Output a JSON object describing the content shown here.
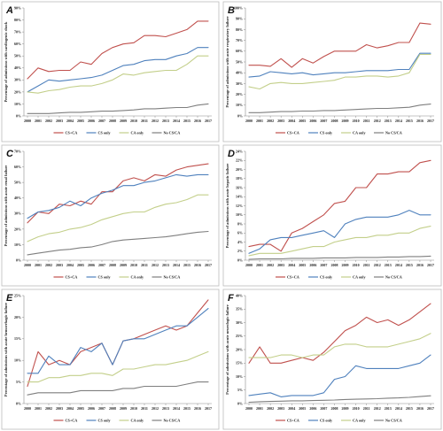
{
  "colors": {
    "CS+CA": "#c0504d",
    "CS only": "#4f81bd",
    "CA only": "#c3cf8a",
    "No CS/CA": "#7f7f7f"
  },
  "chart_data": [
    {
      "panel": "A",
      "type": "line",
      "ylabel": "Percentage of admissions with cardiogenic shock",
      "x": [
        2000,
        2001,
        2002,
        2003,
        2004,
        2005,
        2006,
        2007,
        2008,
        2009,
        2010,
        2011,
        2012,
        2013,
        2014,
        2015,
        2016,
        2017
      ],
      "yticks": [
        "0%",
        "10%",
        "20%",
        "30%",
        "40%",
        "50%",
        "60%",
        "70%",
        "80%",
        "90%"
      ],
      "ylim": [
        0,
        90
      ],
      "series": [
        {
          "name": "CS+CA",
          "values": [
            31,
            40,
            37,
            38,
            38,
            45,
            43,
            52,
            57,
            60,
            61,
            67,
            67,
            66,
            69,
            72,
            79,
            79
          ]
        },
        {
          "name": "CS only",
          "values": [
            20,
            25,
            30,
            29,
            30,
            31,
            32,
            34,
            38,
            42,
            43,
            46,
            47,
            47,
            50,
            52,
            57,
            57
          ]
        },
        {
          "name": "CA only",
          "values": [
            20,
            19,
            21,
            22,
            24,
            25,
            25,
            27,
            30,
            35,
            34,
            36,
            37,
            38,
            38,
            43,
            50,
            50
          ]
        },
        {
          "name": "No CS/CA",
          "values": [
            2,
            2,
            2,
            2.5,
            3,
            3,
            3.5,
            4,
            4,
            4.5,
            5,
            6,
            6,
            6.5,
            7,
            7,
            9,
            10
          ]
        }
      ]
    },
    {
      "panel": "B",
      "type": "line",
      "ylabel": "Percentage of admissions with acute respiratory failure",
      "x": [
        2000,
        2001,
        2002,
        2003,
        2004,
        2005,
        2006,
        2007,
        2008,
        2009,
        2010,
        2011,
        2012,
        2013,
        2014,
        2015,
        2016,
        2017
      ],
      "yticks": [
        "0%",
        "10%",
        "20%",
        "30%",
        "40%",
        "50%",
        "60%",
        "70%",
        "80%",
        "90%",
        "100%"
      ],
      "ylim": [
        0,
        100
      ],
      "series": [
        {
          "name": "CS+CA",
          "values": [
            47,
            47,
            46,
            53,
            45,
            53,
            49,
            55,
            60,
            60,
            60,
            66,
            63,
            65,
            68,
            68,
            86,
            85
          ]
        },
        {
          "name": "CS only",
          "values": [
            36,
            37,
            41,
            40,
            39,
            40,
            38,
            39,
            40,
            40,
            41,
            42,
            42,
            42,
            43,
            43,
            58,
            58
          ]
        },
        {
          "name": "CA only",
          "values": [
            27,
            25,
            30,
            31,
            30,
            30,
            31,
            32,
            33,
            36,
            36,
            37,
            37,
            36,
            37,
            40,
            57,
            57
          ]
        },
        {
          "name": "No CS/CA",
          "values": [
            3,
            3,
            3.5,
            4,
            4,
            4.5,
            4.5,
            5,
            5,
            5.5,
            6,
            6.5,
            7,
            7,
            7.5,
            8,
            10,
            11
          ]
        }
      ]
    },
    {
      "panel": "C",
      "type": "line",
      "ylabel": "Percentage of admissions with acute renal failure",
      "x": [
        2000,
        2001,
        2002,
        2003,
        2004,
        2005,
        2006,
        2007,
        2008,
        2009,
        2010,
        2011,
        2012,
        2013,
        2014,
        2015,
        2016,
        2017
      ],
      "yticks": [
        "0%",
        "10%",
        "20%",
        "30%",
        "40%",
        "50%",
        "60%",
        "70%"
      ],
      "ylim": [
        0,
        70
      ],
      "series": [
        {
          "name": "CS+CA",
          "values": [
            24,
            31,
            30,
            36,
            35,
            38,
            36,
            44,
            44,
            51,
            53,
            51,
            55,
            54,
            58,
            60,
            61,
            62
          ]
        },
        {
          "name": "CS only",
          "values": [
            27,
            31,
            32,
            34,
            38,
            35,
            40,
            43,
            45,
            48,
            48,
            50,
            51,
            53,
            55,
            54,
            55,
            55
          ]
        },
        {
          "name": "CA only",
          "values": [
            12,
            15,
            17,
            18,
            20,
            21,
            23,
            26,
            28,
            30,
            31,
            31,
            34,
            36,
            37,
            39,
            42,
            42
          ]
        },
        {
          "name": "No CS/CA",
          "values": [
            3.5,
            4.5,
            5.5,
            6.5,
            7,
            8,
            8.5,
            10,
            12,
            13,
            13.5,
            14,
            14.5,
            15,
            16,
            17,
            18,
            18.5
          ]
        }
      ]
    },
    {
      "panel": "D",
      "type": "line",
      "ylabel": "Percentage of admissions with acute hepatic failure",
      "x": [
        2000,
        2001,
        2002,
        2003,
        2004,
        2005,
        2006,
        2007,
        2008,
        2009,
        2010,
        2011,
        2012,
        2013,
        2014,
        2015,
        2016,
        2017
      ],
      "yticks": [
        "0%",
        "2%",
        "4%",
        "6%",
        "8%",
        "10%",
        "12%",
        "14%",
        "16%",
        "18%",
        "20%",
        "22%",
        "24%"
      ],
      "ylim": [
        0,
        24
      ],
      "series": [
        {
          "name": "CS+CA",
          "values": [
            3,
            3.5,
            3.5,
            2,
            6,
            7,
            8.5,
            10,
            12.5,
            13,
            16,
            16,
            19,
            19,
            19.5,
            19.5,
            21.5,
            22
          ]
        },
        {
          "name": "CS only",
          "values": [
            1.5,
            2.5,
            4.5,
            5,
            5,
            5.5,
            6,
            6.5,
            5,
            8,
            9,
            9.5,
            9.5,
            9.5,
            10,
            11,
            10,
            10
          ]
        },
        {
          "name": "CA only",
          "values": [
            1,
            1.5,
            1.5,
            1.5,
            2,
            2.5,
            3,
            3,
            4,
            4.5,
            5,
            5,
            5.5,
            5.5,
            6,
            6,
            7,
            7.5
          ]
        },
        {
          "name": "No CS/CA",
          "values": [
            0.2,
            0.3,
            0.3,
            0.3,
            0.4,
            0.4,
            0.4,
            0.5,
            0.5,
            0.5,
            0.6,
            0.6,
            0.6,
            0.7,
            0.7,
            0.8,
            0.8,
            0.9
          ]
        }
      ]
    },
    {
      "panel": "E",
      "type": "line",
      "ylabel": "Percentage of admissions with acute hemorrhagic failure",
      "x": [
        2000,
        2001,
        2002,
        2003,
        2004,
        2005,
        2006,
        2007,
        2008,
        2009,
        2010,
        2011,
        2012,
        2013,
        2014,
        2015,
        2016,
        2017
      ],
      "yticks": [
        "0%",
        "5%",
        "10%",
        "15%",
        "20%",
        "25%"
      ],
      "ylim": [
        0,
        25
      ],
      "series": [
        {
          "name": "CS+CA",
          "values": [
            4,
            12,
            9,
            10,
            9,
            12,
            13,
            14,
            9,
            14.5,
            15,
            16,
            17,
            18,
            17,
            18,
            21,
            24
          ]
        },
        {
          "name": "CS only",
          "values": [
            7,
            7,
            11,
            9,
            9,
            13,
            12,
            14,
            9,
            14.5,
            15,
            15,
            16,
            17,
            18,
            18,
            20,
            22
          ]
        },
        {
          "name": "CA only",
          "values": [
            5,
            5,
            6,
            6,
            6.5,
            6.5,
            7,
            7,
            6.5,
            8,
            8,
            8.5,
            9,
            9,
            9.5,
            10,
            11,
            12
          ]
        },
        {
          "name": "No CS/CA",
          "values": [
            2,
            2.5,
            2.5,
            2.5,
            2.5,
            3,
            3,
            3,
            3,
            3.5,
            3.5,
            4,
            4,
            4,
            4,
            4.5,
            5,
            5
          ]
        }
      ]
    },
    {
      "panel": "F",
      "type": "line",
      "ylabel": "Percentage of admissions with acute neurologic failure",
      "x": [
        2000,
        2001,
        2002,
        2003,
        2004,
        2005,
        2006,
        2007,
        2008,
        2009,
        2010,
        2011,
        2012,
        2013,
        2014,
        2015,
        2016,
        2017
      ],
      "yticks": [
        "0%",
        "5%",
        "10%",
        "15%",
        "20%",
        "25%",
        "30%",
        "35%",
        "40%"
      ],
      "ylim": [
        0,
        40
      ],
      "series": [
        {
          "name": "CS+CA",
          "values": [
            15,
            21,
            15,
            15,
            16,
            17,
            16,
            19,
            23,
            27,
            29,
            32,
            30,
            31,
            29,
            31,
            34,
            37
          ]
        },
        {
          "name": "CS only",
          "values": [
            3,
            3.5,
            4,
            2.5,
            3,
            3,
            3,
            4,
            9,
            10,
            14,
            13,
            13,
            13,
            13,
            14,
            15,
            18
          ]
        },
        {
          "name": "CA only",
          "values": [
            17,
            17,
            17,
            18,
            18,
            17,
            18,
            18,
            21,
            22,
            22,
            21,
            21,
            21,
            22,
            23,
            24,
            26
          ]
        },
        {
          "name": "No CS/CA",
          "values": [
            0.5,
            0.7,
            0.8,
            0.9,
            1,
            1,
            1.1,
            1.2,
            1.3,
            1.5,
            1.6,
            1.7,
            1.8,
            2,
            2.1,
            2.3,
            2.6,
            2.9
          ]
        }
      ]
    }
  ]
}
